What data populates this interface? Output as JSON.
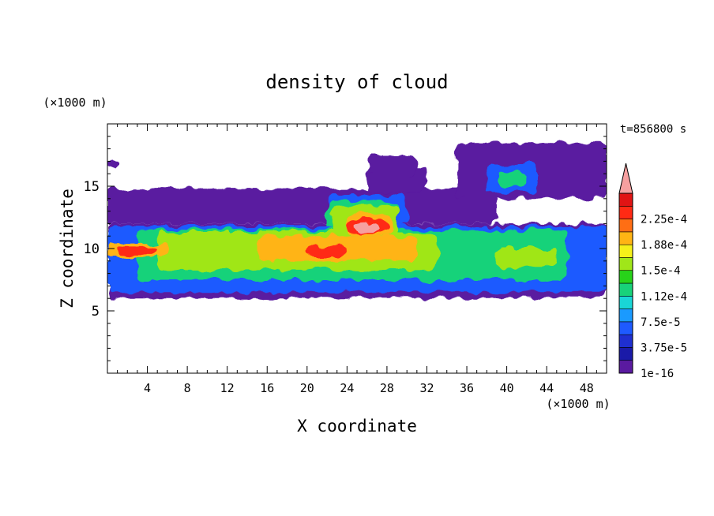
{
  "chart_data": {
    "type": "heatmap",
    "title": "density of cloud",
    "xlabel": "X coordinate",
    "ylabel": "Z coordinate",
    "x_unit": "(×1000 m)",
    "y_unit": "(×1000 m)",
    "time_label": "t=856800 s",
    "xlim": [
      0,
      50
    ],
    "ylim": [
      0,
      20
    ],
    "x_ticks": [
      4,
      8,
      12,
      16,
      20,
      24,
      28,
      32,
      36,
      40,
      44,
      48
    ],
    "y_ticks": [
      5,
      10,
      15
    ],
    "colorbar": {
      "levels": [
        1e-16,
        1.875e-05,
        3.75e-05,
        5.625e-05,
        7.5e-05,
        9.375e-05,
        0.0001125,
        0.00013125,
        0.00015,
        0.00016875,
        0.0001875,
        0.00020625,
        0.000225,
        0.00024375
      ],
      "labels": [
        "1e-16",
        "3.75e-5",
        "7.5e-5",
        "1.12e-4",
        "1.5e-4",
        "1.88e-4",
        "2.25e-4"
      ],
      "colors": [
        "#5a1aa0",
        "#1a1aa8",
        "#1f2fd0",
        "#1e5aff",
        "#1a9aff",
        "#19d6d6",
        "#18d27a",
        "#28d21a",
        "#a0e619",
        "#f5f01a",
        "#ffb414",
        "#ff6e14",
        "#ff2a14",
        "#e01414",
        "#f6a0a0"
      ],
      "extend": "max"
    },
    "cloud_layers": [
      {
        "level": 0,
        "blobs": [
          {
            "x0": 0,
            "x1": 50,
            "z0": 6.0,
            "z1": 12.0
          },
          {
            "x0": 0,
            "x1": 39,
            "z0": 12.0,
            "z1": 14.8
          },
          {
            "x0": 35,
            "x1": 50,
            "z0": 14.0,
            "z1": 18.5
          },
          {
            "x0": 26,
            "x1": 32,
            "z0": 14.5,
            "z1": 16.5
          },
          {
            "x0": 26,
            "x1": 31,
            "z0": 16.0,
            "z1": 17.5
          },
          {
            "x0": 0,
            "x1": 1,
            "z0": 16.5,
            "z1": 17.3
          }
        ]
      },
      {
        "level": 3,
        "blobs": [
          {
            "x0": 0,
            "x1": 50,
            "z0": 6.5,
            "z1": 11.8
          },
          {
            "x0": 22,
            "x1": 30,
            "z0": 11.8,
            "z1": 14.3
          },
          {
            "x0": 38,
            "x1": 43,
            "z0": 14.5,
            "z1": 16.8
          }
        ]
      },
      {
        "level": 6,
        "blobs": [
          {
            "x0": 3,
            "x1": 46,
            "z0": 7.5,
            "z1": 11.5
          },
          {
            "x0": 22,
            "x1": 29,
            "z0": 11.5,
            "z1": 13.8
          },
          {
            "x0": 39,
            "x1": 42,
            "z0": 15.0,
            "z1": 16.2
          }
        ]
      },
      {
        "level": 8,
        "blobs": [
          {
            "x0": 5,
            "x1": 33,
            "z0": 8.3,
            "z1": 11.3
          },
          {
            "x0": 22.5,
            "x1": 29,
            "z0": 11.0,
            "z1": 13.5
          },
          {
            "x0": 39,
            "x1": 45,
            "z0": 8.5,
            "z1": 10.0
          }
        ]
      },
      {
        "level": 10,
        "blobs": [
          {
            "x0": 0,
            "x1": 6,
            "z0": 9.3,
            "z1": 10.4
          },
          {
            "x0": 15,
            "x1": 31,
            "z0": 9.0,
            "z1": 11.0
          },
          {
            "x0": 24,
            "x1": 28.5,
            "z0": 11.0,
            "z1": 12.8
          }
        ]
      },
      {
        "level": 12,
        "blobs": [
          {
            "x0": 1,
            "x1": 5,
            "z0": 9.5,
            "z1": 10.2
          },
          {
            "x0": 20,
            "x1": 24,
            "z0": 9.4,
            "z1": 10.2
          },
          {
            "x0": 24,
            "x1": 28,
            "z0": 11.2,
            "z1": 12.4
          }
        ]
      },
      {
        "level": 14,
        "blobs": [
          {
            "x0": 24.7,
            "x1": 27.3,
            "z0": 11.3,
            "z1": 12.0
          }
        ]
      }
    ]
  }
}
